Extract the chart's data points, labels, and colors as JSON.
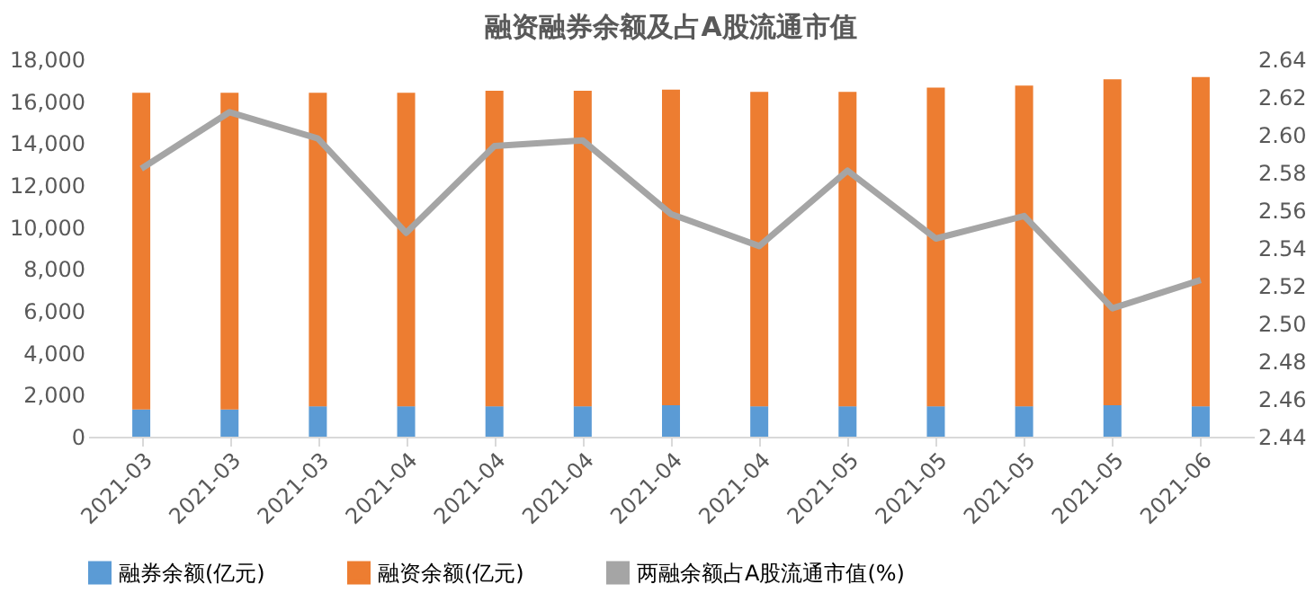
{
  "chart_data": {
    "type": "bar",
    "title": "融资融券余额及占A股流通市值",
    "categories": [
      "2021-03",
      "2021-03",
      "2021-03",
      "2021-04",
      "2021-04",
      "2021-04",
      "2021-04",
      "2021-04",
      "2021-05",
      "2021-05",
      "2021-05",
      "2021-05",
      "2021-06"
    ],
    "stacked": true,
    "series": [
      {
        "name": "融券余额(亿元)",
        "color": "#5b9bd5",
        "values": [
          1300,
          1300,
          1450,
          1450,
          1450,
          1450,
          1500,
          1450,
          1450,
          1450,
          1450,
          1500,
          1450
        ]
      },
      {
        "name": "融资余额(亿元)",
        "color": "#ed7d31",
        "values": [
          15100,
          15100,
          14950,
          14950,
          15050,
          15050,
          15050,
          15000,
          15000,
          15200,
          15300,
          15550,
          15700
        ]
      },
      {
        "name": "两融余额占A股流通市值(%)",
        "color": "#a5a5a5",
        "type": "line",
        "axis": "y2",
        "values": [
          2.582,
          2.612,
          2.598,
          2.548,
          2.594,
          2.597,
          2.558,
          2.541,
          2.581,
          2.545,
          2.557,
          2.508,
          2.523
        ]
      }
    ],
    "ylim": [
      0,
      18000
    ],
    "yticks": [
      0,
      {
        "value": 2000,
        "label": "2,000"
      },
      {
        "value": 4000,
        "label": "4,000"
      },
      {
        "value": 6000,
        "label": "6,000"
      },
      {
        "value": 8000,
        "label": "8,000"
      },
      {
        "value": 10000,
        "label": "10,000"
      },
      {
        "value": 12000,
        "label": "12,000"
      },
      {
        "value": 14000,
        "label": "14,000"
      },
      {
        "value": 16000,
        "label": "16,000"
      },
      {
        "value": 18000,
        "label": "18,000"
      }
    ],
    "y2lim": [
      2.44,
      2.64
    ],
    "y2ticks": [
      2.44,
      2.46,
      2.48,
      {
        "value": 2.5,
        "label": "2.50"
      },
      2.52,
      2.54,
      2.56,
      2.58,
      {
        "value": 2.6,
        "label": "2.60"
      },
      2.62,
      2.64
    ],
    "legend": "bottom",
    "grid": false,
    "line_style": "solid",
    "marker": "none"
  }
}
